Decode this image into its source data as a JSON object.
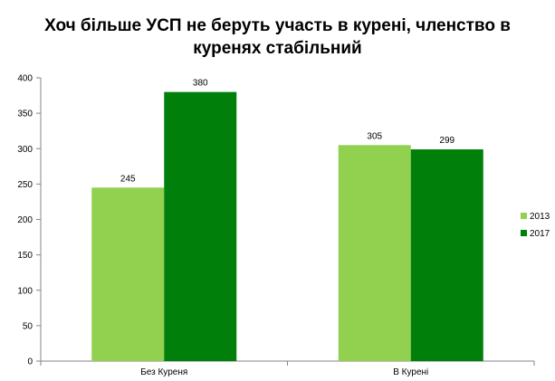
{
  "chart_data": {
    "type": "bar",
    "title_lines": [
      "Хоч більше УСП не беруть участь в курені, членство в",
      "куренях стабільний"
    ],
    "categories": [
      "Без Куреня",
      "В Курені"
    ],
    "series": [
      {
        "name": "2013",
        "values": [
          245,
          305
        ],
        "color": "#92d050"
      },
      {
        "name": "2017",
        "values": [
          380,
          299
        ],
        "color": "#00800a"
      }
    ],
    "ylim": [
      0,
      400
    ],
    "yticks": [
      0,
      50,
      100,
      150,
      200,
      250,
      300,
      350,
      400
    ],
    "grid": false,
    "legend_position": "right",
    "data_labels": true
  }
}
